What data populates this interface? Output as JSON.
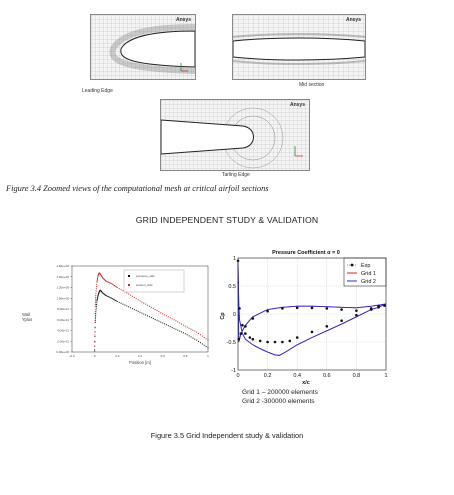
{
  "mesh_views": {
    "brand": "Ansys",
    "brand_sub": "2021 R1",
    "leading_label": "Leading Edge",
    "mid_label": "Mid section",
    "trailing_label": "Tarling Edge"
  },
  "figure_34_caption": "Figure 3.4 Zoomed views of the computational mesh at critical airfoil sections",
  "section_heading": "GRID INDEPENDENT STUDY & VALIDATION",
  "figure_35_caption": "Figure 3.5 Grid Independent study & validation",
  "grid_notes": [
    "Grid 1 – 200000 elements",
    "Grid 2 -300000 elements"
  ],
  "colors": {
    "red": "#d42020",
    "black": "#111111",
    "blue": "#2b2bd8"
  },
  "chart_data": [
    {
      "type": "scatter",
      "title": "",
      "xlabel": "Position [m]",
      "ylabel": "Wall Yplus",
      "xlim": [
        -0.2,
        1.0
      ],
      "ylim": [
        0.0,
        1.6
      ],
      "x_ticks": [
        "-0.2",
        "0",
        "0.2",
        "0.4",
        "0.6",
        "0.8",
        "1"
      ],
      "y_ticks": [
        "0.00e+00",
        "2.00e-01",
        "4.00e-01",
        "6.00e-01",
        "8.00e-01",
        "1.00e+00",
        "1.20e+00",
        "1.40e+00",
        "1.60e+00"
      ],
      "legend": [
        "pressure_side",
        "suction_side"
      ],
      "legend_position": "top-right",
      "series": [
        {
          "name": "pressure_side",
          "color": "#111111",
          "points": [
            [
              0.0,
              0.02
            ],
            [
              0.005,
              0.55
            ],
            [
              0.01,
              0.75
            ],
            [
              0.02,
              0.95
            ],
            [
              0.03,
              1.05
            ],
            [
              0.04,
              1.12
            ],
            [
              0.05,
              1.15
            ],
            [
              0.07,
              1.1
            ],
            [
              0.1,
              1.05
            ],
            [
              0.15,
              1.0
            ],
            [
              0.2,
              0.94
            ],
            [
              0.3,
              0.84
            ],
            [
              0.4,
              0.74
            ],
            [
              0.5,
              0.64
            ],
            [
              0.6,
              0.54
            ],
            [
              0.7,
              0.44
            ],
            [
              0.8,
              0.34
            ],
            [
              0.9,
              0.22
            ],
            [
              1.0,
              0.08
            ]
          ]
        },
        {
          "name": "suction_side",
          "color": "#d42020",
          "points": [
            [
              0.0,
              0.05
            ],
            [
              0.005,
              0.85
            ],
            [
              0.01,
              1.05
            ],
            [
              0.02,
              1.3
            ],
            [
              0.03,
              1.42
            ],
            [
              0.04,
              1.47
            ],
            [
              0.05,
              1.45
            ],
            [
              0.07,
              1.38
            ],
            [
              0.1,
              1.32
            ],
            [
              0.15,
              1.27
            ],
            [
              0.2,
              1.2
            ],
            [
              0.3,
              1.08
            ],
            [
              0.4,
              0.95
            ],
            [
              0.5,
              0.83
            ],
            [
              0.6,
              0.71
            ],
            [
              0.7,
              0.6
            ],
            [
              0.8,
              0.48
            ],
            [
              0.9,
              0.37
            ],
            [
              1.0,
              0.22
            ]
          ]
        }
      ]
    },
    {
      "type": "line",
      "title": "Pressure Coefficient α = 0",
      "xlabel": "x/c",
      "ylabel": "Cp",
      "xlim": [
        0,
        1
      ],
      "ylim": [
        -1,
        1
      ],
      "x_ticks": [
        "0",
        "0.2",
        "0.4",
        "0.6",
        "0.8",
        "1"
      ],
      "y_ticks": [
        "-1",
        "-0.5",
        "0",
        "0.5",
        "1"
      ],
      "legend": [
        "Exp",
        "Grid 1",
        "Grid 2"
      ],
      "legend_position": "top-right",
      "grid": true,
      "series": [
        {
          "name": "Exp",
          "color": "#111111",
          "marker": "circle",
          "x": [
            0.0,
            0.01,
            0.03,
            0.05,
            0.08,
            0.1,
            0.15,
            0.2,
            0.25,
            0.3,
            0.35,
            0.4,
            0.5,
            0.6,
            0.7,
            0.8,
            0.9,
            0.95,
            0.99,
            0.005,
            0.02,
            0.05,
            0.1,
            0.2,
            0.3,
            0.4,
            0.5,
            0.6,
            0.7,
            0.8,
            0.9,
            0.95
          ],
          "y": [
            0.95,
            0.1,
            -0.2,
            -0.35,
            -0.42,
            -0.45,
            -0.48,
            -0.5,
            -0.5,
            -0.5,
            -0.48,
            -0.42,
            -0.32,
            -0.22,
            -0.12,
            -0.02,
            0.08,
            0.12,
            0.15,
            -0.45,
            -0.35,
            -0.22,
            -0.08,
            0.05,
            0.1,
            0.11,
            0.11,
            0.1,
            0.08,
            0.06,
            0.1,
            0.14
          ]
        },
        {
          "name": "Grid 1",
          "color": "#d42020",
          "x": [
            0.0,
            0.005,
            0.01,
            0.03,
            0.05,
            0.1,
            0.15,
            0.2,
            0.25,
            0.28,
            0.32,
            0.4,
            0.5,
            0.6,
            0.7,
            0.8,
            0.9,
            0.95,
            1.0,
            0.9,
            0.8,
            0.7,
            0.6,
            0.5,
            0.4,
            0.3,
            0.2,
            0.1,
            0.05,
            0.02,
            0.005,
            0.0
          ],
          "y": [
            0.95,
            0.2,
            -0.1,
            -0.35,
            -0.45,
            -0.55,
            -0.62,
            -0.68,
            -0.73,
            -0.74,
            -0.68,
            -0.55,
            -0.42,
            -0.3,
            -0.18,
            -0.05,
            0.08,
            0.12,
            0.18,
            0.14,
            0.11,
            0.12,
            0.13,
            0.14,
            0.14,
            0.12,
            0.08,
            -0.05,
            -0.2,
            -0.35,
            -0.5,
            0.95
          ]
        },
        {
          "name": "Grid 2",
          "color": "#2b2bd8",
          "x": [
            0.0,
            0.005,
            0.01,
            0.03,
            0.05,
            0.1,
            0.15,
            0.2,
            0.25,
            0.28,
            0.32,
            0.4,
            0.5,
            0.6,
            0.7,
            0.8,
            0.9,
            0.95,
            1.0,
            0.9,
            0.8,
            0.7,
            0.6,
            0.5,
            0.4,
            0.3,
            0.2,
            0.1,
            0.05,
            0.02,
            0.005,
            0.0
          ],
          "y": [
            0.95,
            0.2,
            -0.1,
            -0.35,
            -0.45,
            -0.55,
            -0.62,
            -0.68,
            -0.73,
            -0.74,
            -0.68,
            -0.55,
            -0.42,
            -0.3,
            -0.18,
            -0.05,
            0.08,
            0.12,
            0.18,
            0.14,
            0.11,
            0.12,
            0.13,
            0.14,
            0.14,
            0.12,
            0.08,
            -0.05,
            -0.2,
            -0.35,
            -0.5,
            0.95
          ]
        }
      ]
    }
  ]
}
